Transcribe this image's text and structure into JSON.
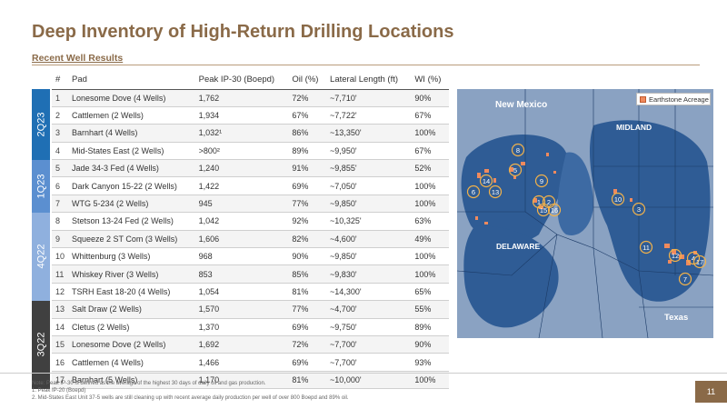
{
  "title": "Deep Inventory of High-Return Drilling Locations",
  "subtitle": "Recent Well Results",
  "table": {
    "headers": [
      "#",
      "Pad",
      "Peak IP-30 (Boepd)",
      "Oil (%)",
      "Lateral Length (ft)",
      "WI (%)"
    ],
    "rows": [
      [
        "1",
        "Lonesome Dove (4 Wells)",
        "1,762",
        "72%",
        "~7,710'",
        "90%"
      ],
      [
        "2",
        "Cattlemen (2 Wells)",
        "1,934",
        "67%",
        "~7,722'",
        "67%"
      ],
      [
        "3",
        "Barnhart (4 Wells)",
        "1,032¹",
        "86%",
        "~13,350'",
        "100%"
      ],
      [
        "4",
        "Mid-States East (2 Wells)",
        ">800²",
        "89%",
        "~9,950'",
        "67%"
      ],
      [
        "5",
        "Jade 34-3 Fed (4 Wells)",
        "1,240",
        "91%",
        "~9,855'",
        "52%"
      ],
      [
        "6",
        "Dark Canyon 15-22 (2 Wells)",
        "1,422",
        "69%",
        "~7,050'",
        "100%"
      ],
      [
        "7",
        "WTG 5-234 (2 Wells)",
        "945",
        "77%",
        "~9,850'",
        "100%"
      ],
      [
        "8",
        "Stetson 13-24 Fed (2 Wells)",
        "1,042",
        "92%",
        "~10,325'",
        "63%"
      ],
      [
        "9",
        "Squeeze 2 ST Com (3 Wells)",
        "1,606",
        "82%",
        "~4,600'",
        "49%"
      ],
      [
        "10",
        "Whittenburg (3 Wells)",
        "968",
        "90%",
        "~9,850'",
        "100%"
      ],
      [
        "11",
        "Whiskey River (3 Wells)",
        "853",
        "85%",
        "~9,830'",
        "100%"
      ],
      [
        "12",
        "TSRH East 18-20 (4 Wells)",
        "1,054",
        "81%",
        "~14,300'",
        "65%"
      ],
      [
        "13",
        "Salt Draw (2 Wells)",
        "1,570",
        "77%",
        "~4,700'",
        "55%"
      ],
      [
        "14",
        "Cletus (2 Wells)",
        "1,370",
        "69%",
        "~9,750'",
        "89%"
      ],
      [
        "15",
        "Lonesome Dove (2 Wells)",
        "1,692",
        "72%",
        "~7,700'",
        "90%"
      ],
      [
        "16",
        "Cattlemen (4 Wells)",
        "1,466",
        "69%",
        "~7,700'",
        "93%"
      ],
      [
        "17",
        "Barnhart (5 Wells)",
        "1,170",
        "81%",
        "~10,000'",
        "100%"
      ]
    ]
  },
  "quarters": [
    {
      "label": "2Q23",
      "rows": 4,
      "color": "#1f6fb4"
    },
    {
      "label": "1Q23",
      "rows": 3,
      "color": "#5b8fd0"
    },
    {
      "label": "4Q22",
      "rows": 5,
      "color": "#8fb0de"
    },
    {
      "label": "3Q22",
      "rows": 5,
      "color": "#404040"
    }
  ],
  "map": {
    "legend_label": "Earthstone Acreage",
    "labels": {
      "nm": "New Mexico",
      "midland": "MIDLAND",
      "delaware": "DELAWARE",
      "texas": "Texas"
    },
    "markers": [
      "1",
      "2",
      "3",
      "4",
      "5",
      "6",
      "7",
      "8",
      "9",
      "10",
      "11",
      "12",
      "13",
      "14",
      "15",
      "16",
      "17"
    ],
    "colors": {
      "background": "#8aa2c2",
      "basin": "#2f5c95",
      "acreage": "#f08a5d",
      "marker": "#f2b24a"
    }
  },
  "notes": [
    "Note: Peak IP-30 is defined as the average of the highest 30 days of daily oil and gas production.",
    "1.    Peak IP-20 (Boepd)",
    "2.    Mid-States East Unit 37-5 wells are still cleaning up with recent average daily production per well of over 800 Boepd and 89% oil."
  ],
  "page_number": "11"
}
